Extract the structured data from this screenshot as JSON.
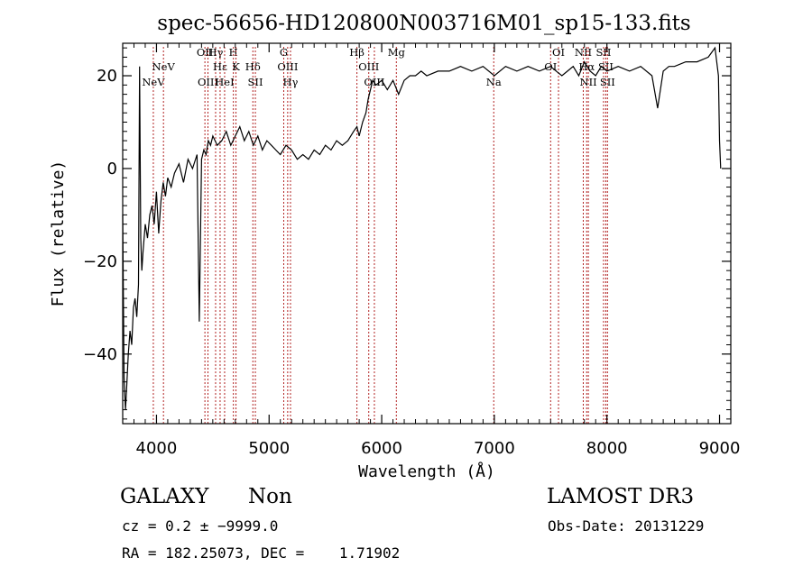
{
  "chart_data": {
    "type": "line",
    "title": "spec-56656-HD120800N003716M01_sp15-133.fits",
    "xlabel": "Wavelength (Å)",
    "ylabel": "Flux (relative)",
    "xlim": [
      3700,
      9100
    ],
    "ylim": [
      -55,
      27
    ],
    "x_ticks": [
      4000,
      5000,
      6000,
      7000,
      8000,
      9000
    ],
    "x_tick_labels": [
      "4000",
      "5000",
      "6000",
      "7000",
      "8000",
      "9000"
    ],
    "y_ticks": [
      -40,
      -20,
      0,
      20
    ],
    "y_tick_labels": [
      "−40",
      "−20",
      "0",
      "20"
    ],
    "line_color": "#000000",
    "marker_color": "#b22222",
    "spectrum": {
      "x": [
        3700,
        3712,
        3725,
        3738,
        3750,
        3765,
        3780,
        3795,
        3810,
        3825,
        3840,
        3850,
        3860,
        3870,
        3880,
        3900,
        3920,
        3940,
        3960,
        3980,
        4000,
        4020,
        4040,
        4060,
        4080,
        4100,
        4130,
        4160,
        4200,
        4240,
        4280,
        4320,
        4360,
        4380,
        4400,
        4420,
        4440,
        4460,
        4480,
        4500,
        4540,
        4580,
        4620,
        4660,
        4700,
        4740,
        4780,
        4820,
        4860,
        4900,
        4940,
        4980,
        5020,
        5060,
        5100,
        5150,
        5200,
        5250,
        5300,
        5350,
        5400,
        5450,
        5500,
        5550,
        5600,
        5650,
        5700,
        5750,
        5780,
        5800,
        5830,
        5860,
        5880,
        5900,
        5920,
        5950,
        6000,
        6050,
        6100,
        6150,
        6200,
        6250,
        6300,
        6350,
        6400,
        6500,
        6600,
        6700,
        6800,
        6900,
        7000,
        7100,
        7200,
        7300,
        7400,
        7500,
        7550,
        7600,
        7650,
        7700,
        7750,
        7800,
        7850,
        7900,
        7950,
        8000,
        8100,
        8200,
        8300,
        8400,
        8450,
        8500,
        8550,
        8600,
        8700,
        8800,
        8900,
        8960,
        8990,
        9000,
        9010
      ],
      "y": [
        -10,
        -45,
        -52,
        -46,
        -40,
        -35,
        -38,
        -30,
        -28,
        -32,
        -25,
        22,
        -15,
        -22,
        -18,
        -12,
        -15,
        -10,
        -8,
        -12,
        -5,
        -14,
        -7,
        -3,
        -6,
        -2,
        -4,
        -1,
        1,
        -3,
        2,
        0,
        3,
        -33,
        2,
        4,
        3,
        6,
        5,
        7,
        5,
        6,
        8,
        5,
        7,
        9,
        6,
        8,
        5,
        7,
        4,
        6,
        5,
        4,
        3,
        5,
        4,
        2,
        3,
        2,
        4,
        3,
        5,
        4,
        6,
        5,
        6,
        8,
        9,
        7,
        10,
        12,
        15,
        17,
        19,
        18,
        19,
        17,
        19,
        16,
        19,
        20,
        20,
        21,
        20,
        21,
        21,
        22,
        21,
        22,
        20,
        22,
        21,
        22,
        21,
        22,
        21,
        20,
        21,
        22,
        20,
        23,
        21,
        20,
        22,
        21,
        22,
        21,
        22,
        20,
        13,
        21,
        22,
        22,
        23,
        23,
        24,
        26,
        20,
        6,
        0
      ]
    },
    "line_markers": [
      {
        "label": "NeV",
        "wavelength": 3972,
        "level": 3
      },
      {
        "label": "NeV",
        "wavelength": 4062,
        "level": 2
      },
      {
        "label": "OII",
        "wavelength": 4430,
        "level": 1
      },
      {
        "label": "OIII",
        "wavelength": 4457,
        "level": 3
      },
      {
        "label": "Hγ",
        "wavelength": 4525,
        "level": 1
      },
      {
        "label": "Hε",
        "wavelength": 4565,
        "level": 2
      },
      {
        "label": "HeI",
        "wavelength": 4605,
        "level": 3
      },
      {
        "label": "H",
        "wavelength": 4683,
        "level": 1
      },
      {
        "label": "K",
        "wavelength": 4706,
        "level": 2
      },
      {
        "label": "Hδ",
        "wavelength": 4856,
        "level": 2
      },
      {
        "label": "SII",
        "wavelength": 4878,
        "level": 3
      },
      {
        "label": "G",
        "wavelength": 5130,
        "level": 1
      },
      {
        "label": "OIII",
        "wavelength": 5165,
        "level": 2
      },
      {
        "label": "Hγ",
        "wavelength": 5190,
        "level": 3
      },
      {
        "label": "Hβ",
        "wavelength": 5780,
        "level": 1
      },
      {
        "label": "OIII",
        "wavelength": 5885,
        "level": 2
      },
      {
        "label": "OIII",
        "wavelength": 5935,
        "level": 3
      },
      {
        "label": "Mg",
        "wavelength": 6130,
        "level": 1
      },
      {
        "label": "Na",
        "wavelength": 6995,
        "level": 3
      },
      {
        "label": "OI",
        "wavelength": 7500,
        "level": 2
      },
      {
        "label": "OI",
        "wavelength": 7570,
        "level": 1
      },
      {
        "label": "NII",
        "wavelength": 7790,
        "level": 1
      },
      {
        "label": "Hα",
        "wavelength": 7820,
        "level": 2
      },
      {
        "label": "NII",
        "wavelength": 7835,
        "level": 3
      },
      {
        "label": "SII",
        "wavelength": 7970,
        "level": 1
      },
      {
        "label": "SII",
        "wavelength": 7990,
        "level": 2
      },
      {
        "label": "SII",
        "wavelength": 8005,
        "level": 3
      }
    ]
  },
  "footer": {
    "classification": "GALAXY",
    "subclass": "Non",
    "redshift": "cz = 0.2 ± −9999.0",
    "coords": "RA = 182.25073, DEC =    1.71902",
    "survey": "LAMOST DR3",
    "obs_date": "Obs-Date: 20131229"
  }
}
